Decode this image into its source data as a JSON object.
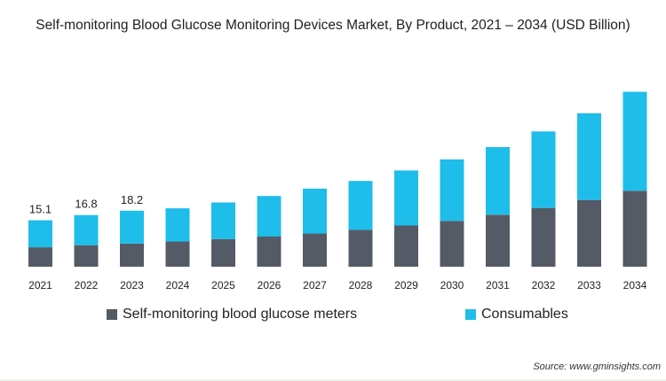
{
  "chart_data": {
    "type": "bar",
    "stacked": true,
    "title": "Self-monitoring Blood Glucose Monitoring Devices Market, By Product, 2021 – 2034 (USD Billion)",
    "categories": [
      "2021",
      "2022",
      "2023",
      "2024",
      "2025",
      "2026",
      "2027",
      "2028",
      "2029",
      "2030",
      "2031",
      "2032",
      "2033",
      "2034"
    ],
    "series": [
      {
        "name": "Self-monitoring blood glucose meters",
        "color": "#545b66",
        "values": [
          6.3,
          7.0,
          7.5,
          8.2,
          9.0,
          9.8,
          10.8,
          12.0,
          13.4,
          14.9,
          16.9,
          19.1,
          21.7,
          24.7
        ]
      },
      {
        "name": "Consumables",
        "color": "#1ebdea",
        "values": [
          8.8,
          9.8,
          10.7,
          10.8,
          11.9,
          13.2,
          14.6,
          15.9,
          17.9,
          20.0,
          22.0,
          24.9,
          28.2,
          32.2
        ]
      }
    ],
    "data_labels": [
      "15.1",
      "16.8",
      "18.2"
    ],
    "ylim": [
      0,
      60
    ],
    "grid": false,
    "legend_position": "bottom"
  },
  "source": "Source: www.gminsights.com"
}
